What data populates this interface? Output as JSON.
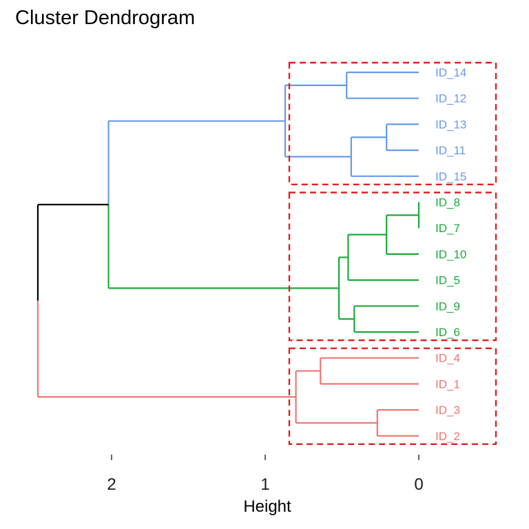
{
  "chart_data": {
    "type": "dendrogram",
    "title": "Cluster Dendrogram",
    "xlabel": "Height",
    "ylabel": "",
    "orientation": "horizontal",
    "x_ticks": [
      2,
      1,
      0
    ],
    "x_tick_labels": [
      "2",
      "1",
      "0"
    ],
    "xlim": [
      2.5,
      -0.5
    ],
    "leaves": [
      "ID_14",
      "ID_12",
      "ID_13",
      "ID_11",
      "ID_15",
      "ID_8",
      "ID_7",
      "ID_10",
      "ID_5",
      "ID_9",
      "ID_6",
      "ID_4",
      "ID_1",
      "ID_3",
      "ID_2"
    ],
    "merges": [
      {
        "id": "a",
        "children": [
          "ID_14",
          "ID_12"
        ],
        "height": 0.47
      },
      {
        "id": "b",
        "children": [
          "ID_13",
          "ID_11"
        ],
        "height": 0.21
      },
      {
        "id": "c",
        "children": [
          "b",
          "ID_15"
        ],
        "height": 0.44
      },
      {
        "id": "d",
        "children": [
          "a",
          "c"
        ],
        "height": 0.87
      },
      {
        "id": "e",
        "children": [
          "ID_8",
          "ID_7"
        ],
        "height": 0.0
      },
      {
        "id": "f",
        "children": [
          "e",
          "ID_10"
        ],
        "height": 0.21
      },
      {
        "id": "g",
        "children": [
          "f",
          "ID_5"
        ],
        "height": 0.46
      },
      {
        "id": "h",
        "children": [
          "ID_9",
          "ID_6"
        ],
        "height": 0.42
      },
      {
        "id": "i",
        "children": [
          "g",
          "h"
        ],
        "height": 0.52
      },
      {
        "id": "j",
        "children": [
          "d",
          "i"
        ],
        "height": 2.02
      },
      {
        "id": "k",
        "children": [
          "ID_4",
          "ID_1"
        ],
        "height": 0.64
      },
      {
        "id": "l",
        "children": [
          "ID_3",
          "ID_2"
        ],
        "height": 0.27
      },
      {
        "id": "m",
        "children": [
          "k",
          "l"
        ],
        "height": 0.8
      },
      {
        "id": "n",
        "children": [
          "j",
          "m"
        ],
        "height": 2.48
      }
    ],
    "clusters": [
      {
        "members": [
          "ID_14",
          "ID_12",
          "ID_13",
          "ID_11",
          "ID_15"
        ],
        "root": "d",
        "color": "#6699ee"
      },
      {
        "members": [
          "ID_8",
          "ID_7",
          "ID_10",
          "ID_5",
          "ID_9",
          "ID_6"
        ],
        "root": "i",
        "color": "#1aaa3a"
      },
      {
        "members": [
          "ID_4",
          "ID_1",
          "ID_3",
          "ID_2"
        ],
        "root": "m",
        "color": "#f07570"
      }
    ],
    "root_color": "#000000",
    "box_color": "#e02020",
    "grid": false,
    "legend": "none"
  }
}
